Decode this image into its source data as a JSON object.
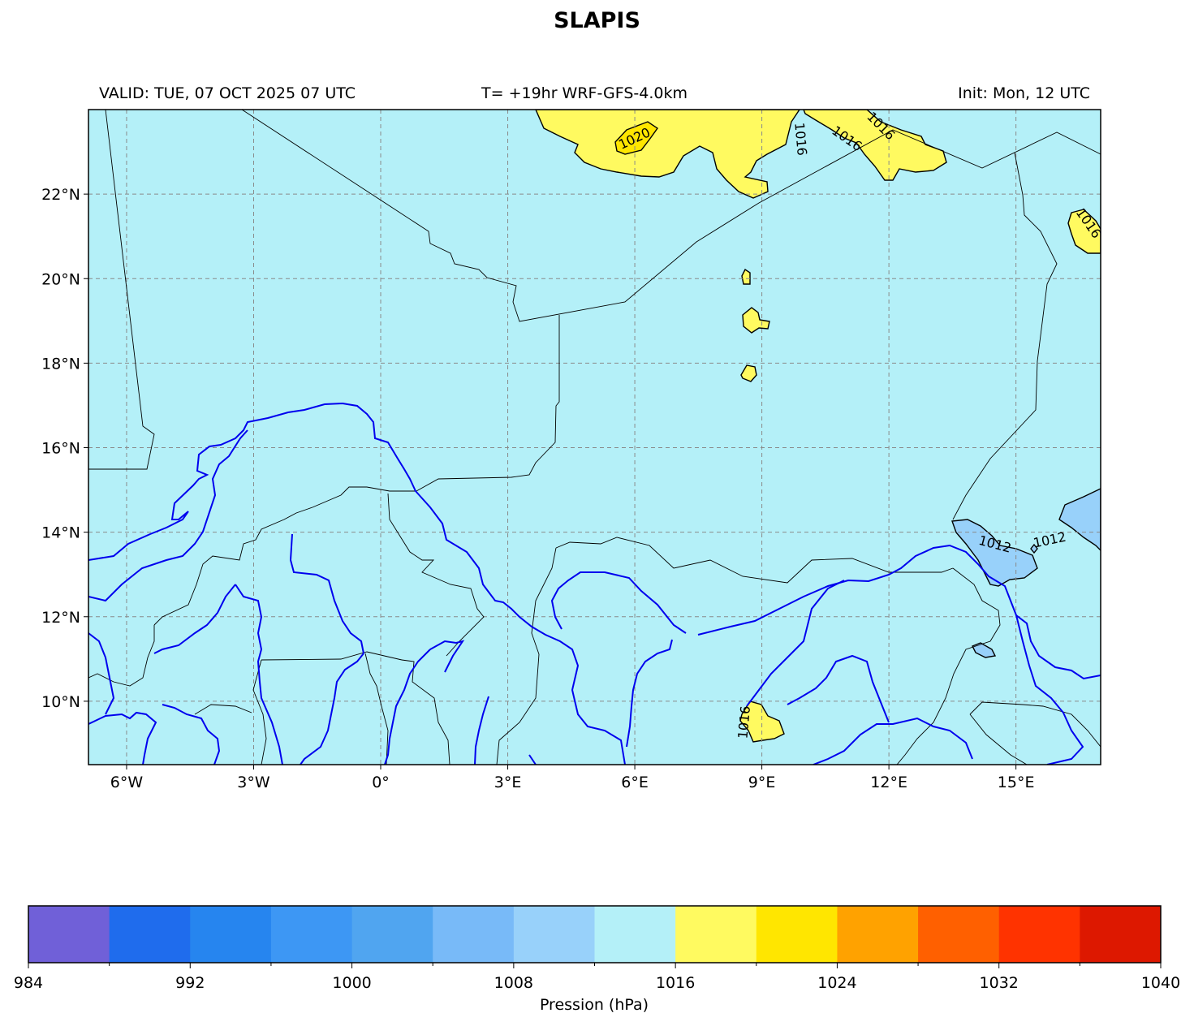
{
  "title": "SLAPIS",
  "subtitle": {
    "left": "VALID: TUE, 07 OCT 2025 07 UTC",
    "center": "T= +19hr WRF-GFS-4.0km",
    "right": "Init: Mon, 12 UTC"
  },
  "map": {
    "lon_range": [
      -6.9,
      17.0
    ],
    "lat_range": [
      8.5,
      24.0
    ],
    "lon_ticks": [
      {
        "value": -6,
        "label": "6°W"
      },
      {
        "value": -3,
        "label": "3°W"
      },
      {
        "value": 0,
        "label": "0°"
      },
      {
        "value": 3,
        "label": "3°E"
      },
      {
        "value": 6,
        "label": "6°E"
      },
      {
        "value": 9,
        "label": "9°E"
      },
      {
        "value": 12,
        "label": "12°E"
      },
      {
        "value": 15,
        "label": "15°E"
      }
    ],
    "lat_ticks": [
      {
        "value": 10,
        "label": "10°N"
      },
      {
        "value": 12,
        "label": "12°N"
      },
      {
        "value": 14,
        "label": "14°N"
      },
      {
        "value": 16,
        "label": "16°N"
      },
      {
        "value": 18,
        "label": "18°N"
      },
      {
        "value": 20,
        "label": "20°N"
      },
      {
        "value": 22,
        "label": "22°N"
      }
    ],
    "gridlines": true,
    "background_fill": "#b4f0f8",
    "contour_labels": [
      {
        "text": "1020",
        "lon": 6.0,
        "lat": 23.3,
        "angle": -25
      },
      {
        "text": "1016",
        "lon": 9.9,
        "lat": 23.3,
        "angle": 85
      },
      {
        "text": "1016",
        "lon": 11.0,
        "lat": 23.3,
        "angle": 35
      },
      {
        "text": "1016",
        "lon": 11.8,
        "lat": 23.6,
        "angle": 45
      },
      {
        "text": "1016",
        "lon": 16.7,
        "lat": 21.3,
        "angle": 55
      },
      {
        "text": "1012",
        "lon": 14.5,
        "lat": 13.7,
        "angle": 15
      },
      {
        "text": "1012",
        "lon": 15.8,
        "lat": 13.8,
        "angle": -12
      },
      {
        "text": "1016",
        "lon": 8.6,
        "lat": 9.5,
        "angle": -85
      }
    ]
  },
  "colorbar": {
    "label": "Pression (hPa)",
    "min": 984,
    "max": 1040,
    "step": 4,
    "colors": [
      "#7060d8",
      "#1f6ced",
      "#2685ef",
      "#3d97f4",
      "#50a5f0",
      "#78baf8",
      "#98d1fa",
      "#b4f0f8",
      "#fffa60",
      "#ffe600",
      "#ffa200",
      "#ff6000",
      "#ff3300",
      "#dd1800"
    ],
    "tick_labels": [
      {
        "value": 984,
        "label": "984"
      },
      {
        "value": 992,
        "label": "992"
      },
      {
        "value": 1000,
        "label": "1000"
      },
      {
        "value": 1008,
        "label": "1008"
      },
      {
        "value": 1016,
        "label": "1016"
      },
      {
        "value": 1024,
        "label": "1024"
      },
      {
        "value": 1032,
        "label": "1032"
      },
      {
        "value": 1040,
        "label": "1040"
      }
    ]
  }
}
